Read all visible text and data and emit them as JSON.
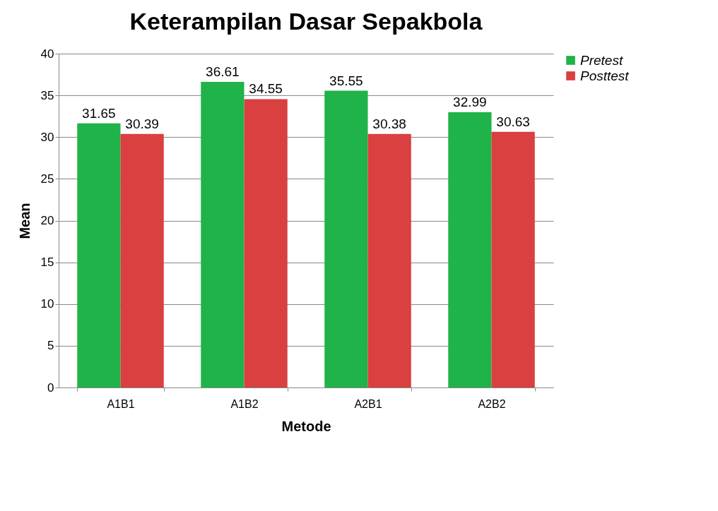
{
  "chart_data": {
    "type": "bar",
    "title": "Keterampilan Dasar Sepakbola",
    "xlabel": "Metode",
    "ylabel": "Mean",
    "categories": [
      "A1B1",
      "A1B2",
      "A2B1",
      "A2B2"
    ],
    "series": [
      {
        "name": "Pretest",
        "color": "#1fb34a",
        "values": [
          31.65,
          36.61,
          35.55,
          32.99
        ]
      },
      {
        "name": "Posttest",
        "color": "#d9403f",
        "values": [
          30.39,
          34.55,
          30.38,
          30.63
        ]
      }
    ],
    "ylim": [
      0,
      40
    ],
    "yticks": [
      0,
      5,
      10,
      15,
      20,
      25,
      30,
      35,
      40
    ],
    "grid": "y",
    "legend": "right",
    "data_labels": true
  }
}
